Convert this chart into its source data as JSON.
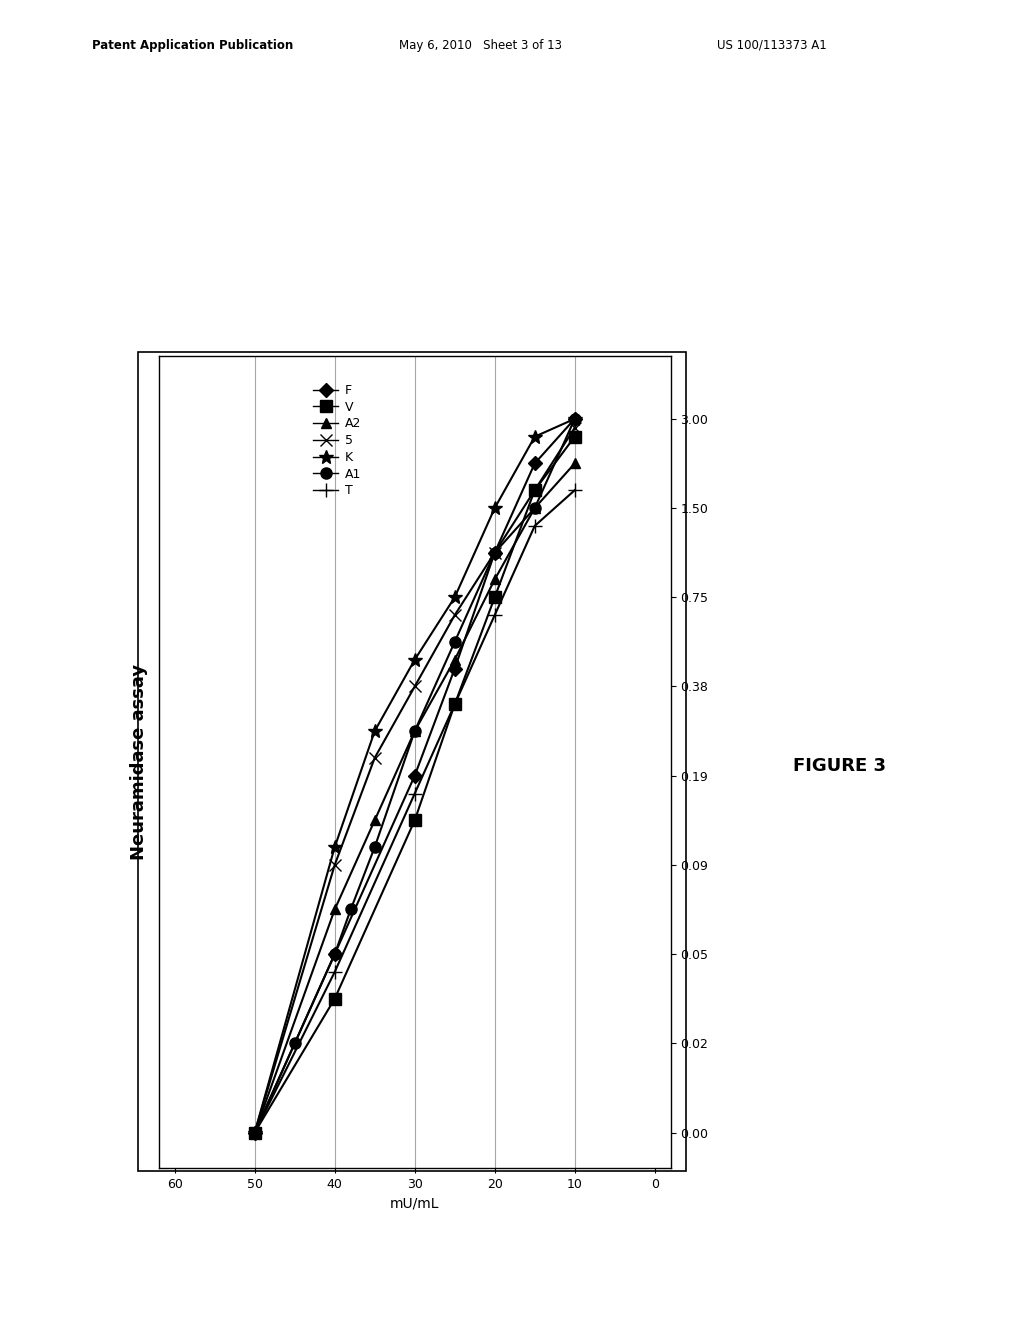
{
  "title": "Neuramidase assay",
  "xlabel": "mU/mL",
  "y_tick_labels": [
    "0.00",
    "0.02",
    "0.05",
    "0.09",
    "0.19",
    "0.38",
    "0.75",
    "1.50",
    "3.00"
  ],
  "y_tick_positions": [
    0,
    1,
    2,
    3,
    4,
    5,
    6,
    7,
    8
  ],
  "x_ticks": [
    0,
    10,
    20,
    30,
    40,
    50,
    60
  ],
  "vlines_x": [
    10,
    20,
    30,
    40,
    50
  ],
  "series": [
    {
      "name": "F",
      "x": [
        50,
        40,
        30,
        25,
        20,
        15,
        10
      ],
      "y": [
        0,
        2,
        4,
        5.2,
        6.5,
        7.5,
        8.0
      ],
      "marker": "D",
      "ms": 7
    },
    {
      "name": "V",
      "x": [
        50,
        40,
        30,
        25,
        20,
        15,
        10
      ],
      "y": [
        0,
        1.5,
        3.5,
        4.8,
        6.0,
        7.2,
        7.8
      ],
      "marker": "s",
      "ms": 8
    },
    {
      "name": "A2",
      "x": [
        50,
        40,
        35,
        30,
        25,
        20,
        15,
        10
      ],
      "y": [
        0,
        2.5,
        3.5,
        4.5,
        5.3,
        6.2,
        7.0,
        7.5
      ],
      "marker": "^",
      "ms": 7
    },
    {
      "name": "5",
      "x": [
        50,
        40,
        35,
        30,
        25,
        20,
        15,
        10
      ],
      "y": [
        0,
        3.0,
        4.2,
        5.0,
        5.8,
        6.5,
        7.2,
        7.9
      ],
      "marker": "x",
      "ms": 8
    },
    {
      "name": "K",
      "x": [
        50,
        40,
        35,
        30,
        25,
        20,
        15,
        10
      ],
      "y": [
        0,
        3.2,
        4.5,
        5.3,
        6.0,
        7.0,
        7.8,
        8.0
      ],
      "marker": "*",
      "ms": 10
    },
    {
      "name": "A1",
      "x": [
        50,
        45,
        40,
        38,
        35,
        30,
        25,
        20,
        15,
        10
      ],
      "y": [
        0,
        1.0,
        2.0,
        2.5,
        3.2,
        4.5,
        5.5,
        6.5,
        7.0,
        8.0
      ],
      "marker": "o",
      "ms": 8
    },
    {
      "name": "T",
      "x": [
        50,
        40,
        30,
        20,
        15,
        10
      ],
      "y": [
        0,
        1.8,
        3.8,
        5.8,
        6.8,
        7.2
      ],
      "marker": "+",
      "ms": 10
    }
  ],
  "figure_label": "FIGURE 3",
  "header_left": "Patent Application Publication",
  "header_mid": "May 6, 2010   Sheet 3 of 13",
  "header_right": "US 100/113373 A1",
  "background_color": "#ffffff",
  "line_color": "#000000"
}
